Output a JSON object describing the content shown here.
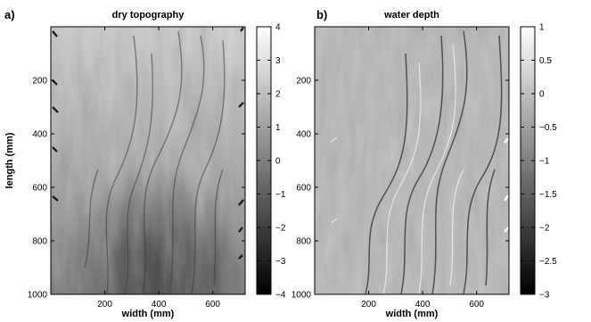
{
  "chart_data": [
    {
      "type": "heatmap",
      "panel_label": "a)",
      "title": "dry topography",
      "xlabel": "width (mm)",
      "ylabel": "length (mm)",
      "xlim": [
        0,
        720
      ],
      "ylim": [
        0,
        1000
      ],
      "y_reversed": true,
      "x_ticks": [
        200,
        400,
        600
      ],
      "y_ticks": [
        200,
        400,
        600,
        800,
        1000
      ],
      "colorbar": {
        "colormap": "gray",
        "range": [
          -4,
          4
        ],
        "ticks": [
          4,
          3,
          2,
          1,
          0,
          -1,
          -2,
          -3,
          -4
        ]
      }
    },
    {
      "type": "heatmap",
      "panel_label": "b)",
      "title": "water depth",
      "xlabel": "width (mm)",
      "ylabel": "",
      "xlim": [
        0,
        720
      ],
      "ylim": [
        0,
        1000
      ],
      "y_reversed": true,
      "x_ticks": [
        200,
        400,
        600
      ],
      "y_ticks": [
        200,
        400,
        600,
        800,
        1000
      ],
      "colorbar": {
        "colormap": "gray",
        "range": [
          -3,
          1
        ],
        "ticks": [
          1,
          0.5,
          0,
          -0.5,
          -1,
          -1.5,
          -2,
          -2.5,
          -3
        ]
      }
    }
  ]
}
